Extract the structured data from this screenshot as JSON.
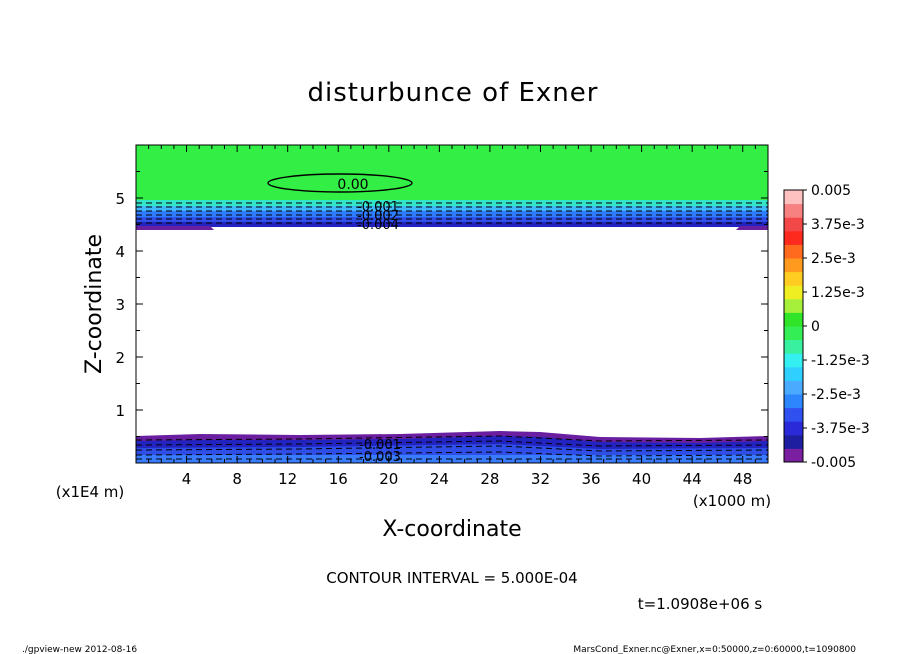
{
  "chart_data": {
    "type": "contour",
    "title": "disturbunce of Exner",
    "xlabel": "X-coordinate",
    "ylabel": "Z-coordinate",
    "x_unit": "(x1000 m)",
    "y_unit": "(x1E4 m)",
    "xlim": [
      0,
      50
    ],
    "ylim": [
      0,
      6
    ],
    "xticks": [
      "4",
      "8",
      "12",
      "16",
      "20",
      "24",
      "28",
      "32",
      "36",
      "40",
      "44",
      "48"
    ],
    "yticks": [
      "1",
      "2",
      "3",
      "4",
      "5"
    ],
    "contour_interval": "CONTOUR INTERVAL = 5.000E-04",
    "time_label": "t=1.0908e+06 s",
    "footer_left": "./gpview-new   2012-08-16",
    "footer_right": "MarsCond_Exner.nc@Exner,x=0:50000,z=0:60000,t=1090800",
    "colorbar": {
      "labels": [
        "0.005",
        "3.75e-3",
        "2.5e-3",
        "1.25e-3",
        "0",
        "-1.25e-3",
        "-2.5e-3",
        "-3.75e-3",
        "-0.005"
      ],
      "colors": [
        "#7a1fa0",
        "#1e1ea0",
        "#2a2ad8",
        "#3050f0",
        "#2e86ff",
        "#4aaaff",
        "#2fd0ff",
        "#34f0f0",
        "#38f0a0",
        "#33ee55",
        "#30e42a",
        "#a6ef3a",
        "#eeee22",
        "#ffcc22",
        "#ff9a1e",
        "#ff6a1e",
        "#ff2a1e",
        "#f34848",
        "#f78080",
        "#ffc0c0"
      ]
    },
    "regions": [
      {
        "name": "upper-green",
        "z_range": [
          4.6,
          6.0
        ],
        "value": "0"
      },
      {
        "name": "upper-negative-band",
        "z_range": [
          4.4,
          4.9
        ],
        "value": "-0.005 to -1.25e-3"
      },
      {
        "name": "lower-negative-band",
        "z_range": [
          0.0,
          0.55
        ],
        "value": "-0.005 to -3.75e-3"
      }
    ],
    "contour_labels": [
      "0.00",
      "-0.001",
      "-0.002",
      "-0.004",
      "-0.001",
      "-0.003"
    ]
  }
}
